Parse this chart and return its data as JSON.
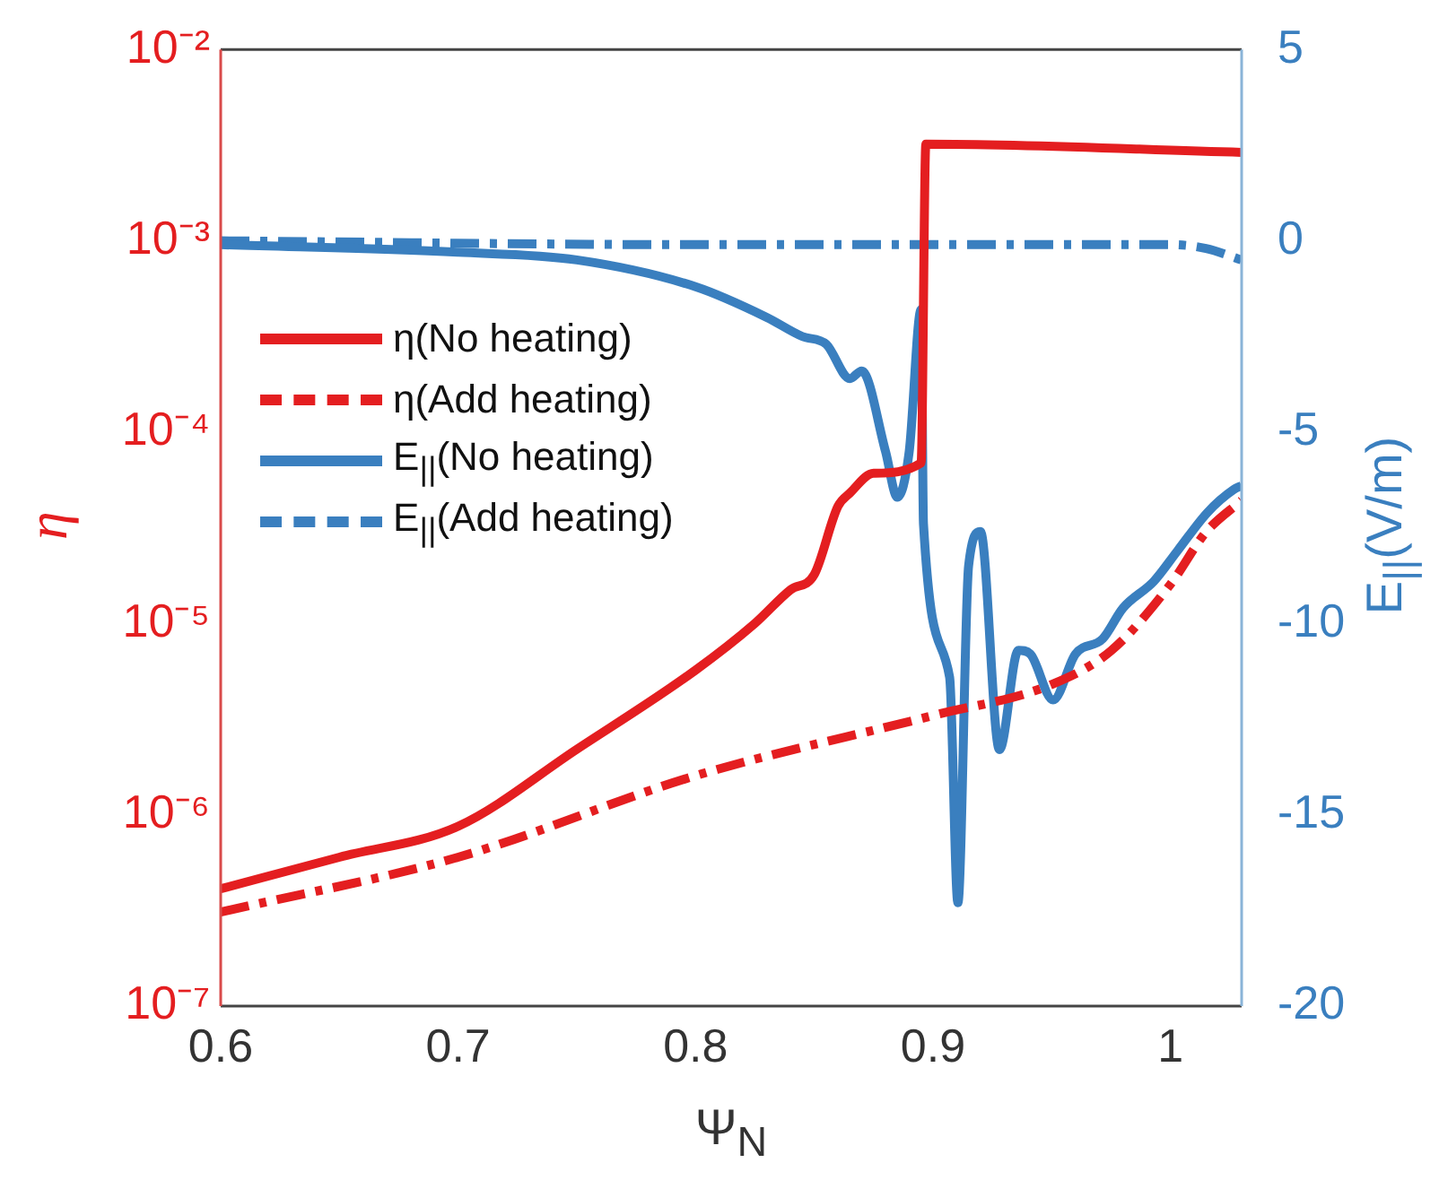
{
  "chart_data": {
    "type": "line",
    "xlabel": "Ψ$_{N}$",
    "ylabel": "η",
    "y2label": "E$_{||}$(V/m)",
    "log": "y",
    "legend": "left",
    "grid": false,
    "xlim": [
      0.6,
      1.03
    ],
    "xticks": [
      0.6,
      0.7,
      0.8,
      0.9,
      1
    ],
    "ylim": [
      1e-07,
      0.01
    ],
    "yticks": [
      {
        "value": 1e-07,
        "label": "10⁻⁷"
      },
      {
        "value": 1e-06,
        "label": "10⁻⁶"
      },
      {
        "value": 1e-05,
        "label": "10⁻⁵"
      },
      {
        "value": 0.0001,
        "label": "10⁻⁴"
      },
      {
        "value": 0.001,
        "label": "10⁻³"
      },
      {
        "value": 0.01,
        "label": "10⁻²"
      }
    ],
    "y2lim": [
      -20,
      5
    ],
    "y2ticks": [
      -20,
      -15,
      -10,
      -5,
      0,
      5
    ],
    "series": [
      {
        "name": "η(No heating)",
        "color": "#e41e20",
        "line_style": "solid",
        "x": [
          0.6,
          0.65,
          0.7,
          0.75,
          0.8,
          0.825,
          0.84,
          0.85,
          0.86,
          0.865,
          0.875,
          0.895,
          0.897,
          1.03
        ],
        "values": [
          4.1e-07,
          6e-07,
          8.7e-07,
          2.2e-06,
          5.7e-06,
          1e-05,
          1.5e-05,
          1.8e-05,
          4.1e-05,
          4.8e-05,
          6.1e-05,
          6.9e-05,
          0.0032,
          0.0029
        ]
      },
      {
        "name": "η(Add heating)",
        "color": "#e41e20",
        "line_style": "dashed",
        "x": [
          0.6,
          0.7,
          0.8,
          0.9,
          0.95,
          0.975,
          1.0,
          1.015,
          1.03
        ],
        "values": [
          3.1e-07,
          6e-07,
          1.6e-06,
          3.3e-06,
          4.8e-06,
          7.2e-06,
          1.6e-05,
          3e-05,
          4.4e-05
        ]
      },
      {
        "name": "E$_{||}$(No heating)",
        "color": "#3a7fbf",
        "line_style": "solid",
        "axis": "y2",
        "x": [
          0.6,
          0.7,
          0.75,
          0.8,
          0.83,
          0.845,
          0.855,
          0.865,
          0.87,
          0.88,
          0.885,
          0.89,
          0.895,
          0.896,
          0.907,
          0.9105,
          0.915,
          0.92,
          0.928,
          0.936,
          0.941,
          0.9506,
          0.96,
          0.9715,
          0.98,
          0.993,
          1.003,
          1.0156,
          1.0267,
          1.03
        ],
        "values": [
          -0.1,
          -0.3,
          -0.5,
          -1.2,
          -2,
          -2.5,
          -2.7,
          -3.6,
          -3.4,
          -5.5,
          -6.7,
          -5.5,
          -1.8,
          -7.4,
          -11.4,
          -17.3,
          -8.5,
          -7.6,
          -13.3,
          -10.7,
          -10.8,
          -12,
          -10.8,
          -10.4,
          -9.6,
          -8.9,
          -8.1,
          -7.1,
          -6.5,
          -6.4
        ]
      },
      {
        "name": "E$_{||}$(Add heating)",
        "color": "#3a7fbf",
        "line_style": "dashed",
        "axis": "y2",
        "x": [
          0.6,
          0.8,
          1.0,
          1.015,
          1.03
        ],
        "values": [
          0,
          -0.1,
          -0.1,
          -0.2,
          -0.5
        ]
      }
    ]
  }
}
